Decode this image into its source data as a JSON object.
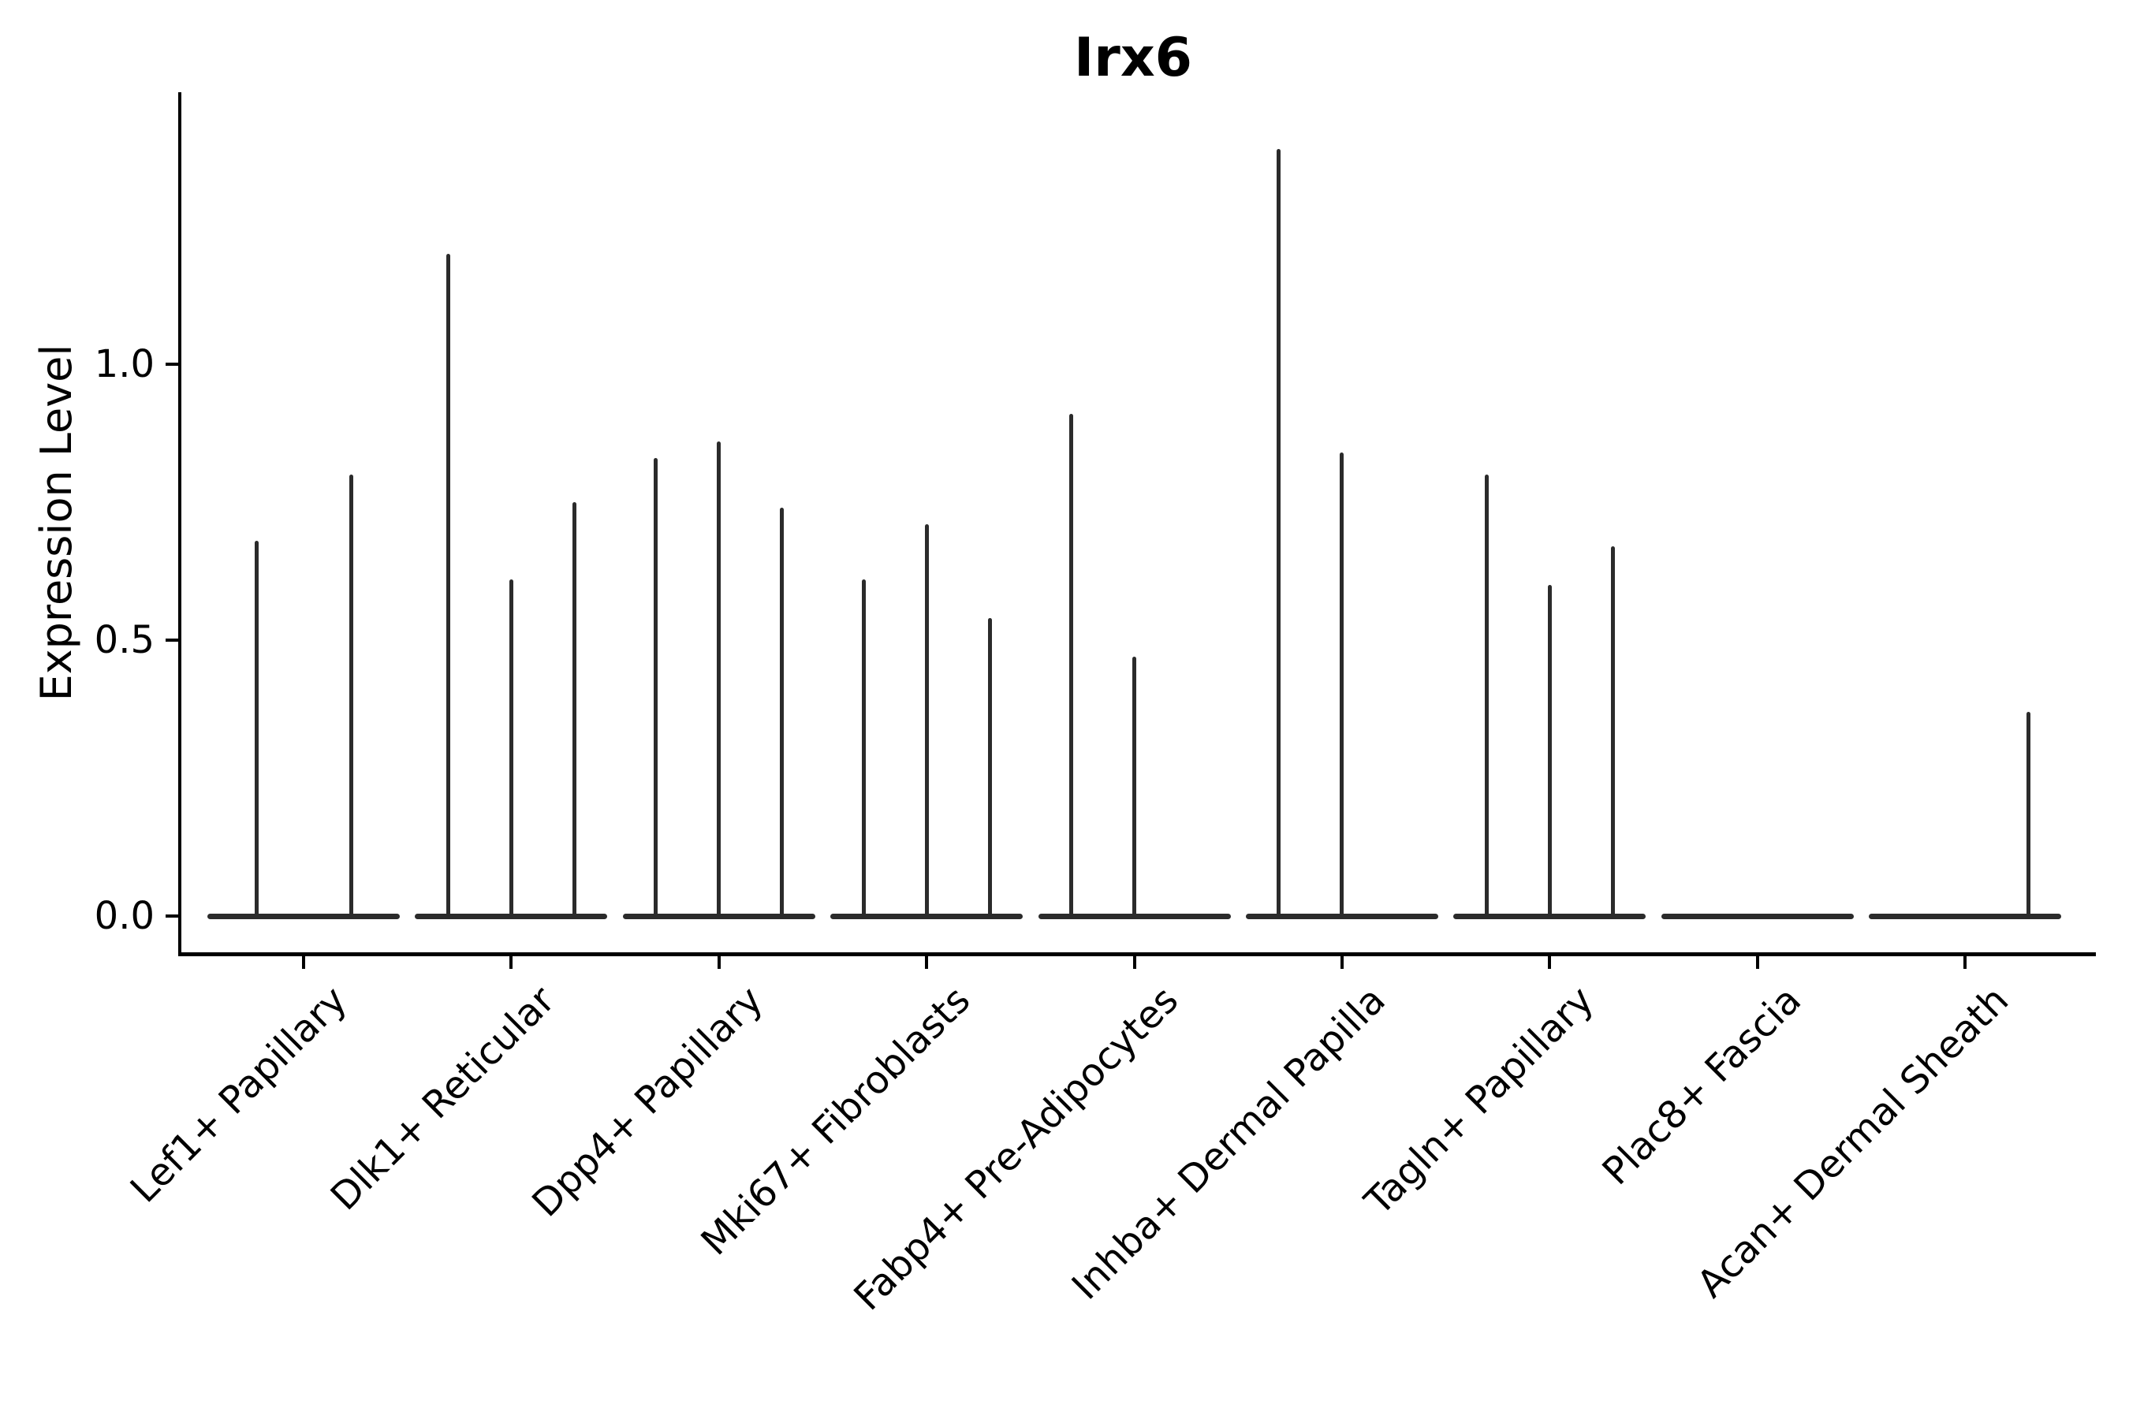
{
  "title": "Irx6",
  "y_axis": {
    "label": "Expression Level",
    "tick_labels": [
      "0.0",
      "0.5",
      "1.0"
    ]
  },
  "colors": {
    "ink": "#2b2b2b",
    "axis": "#000000"
  },
  "chart_data": {
    "type": "violin",
    "title": "Irx6",
    "xlabel": "",
    "ylabel": "Expression Level",
    "ylim": [
      -0.07,
      1.49
    ],
    "yticks": [
      0.0,
      0.5,
      1.0
    ],
    "ytick_labels": [
      "0.0",
      "0.5",
      "1.0"
    ],
    "grid": false,
    "legend": null,
    "categories": [
      "Lef1+ Papillary",
      "Dlk1+ Reticular",
      "Dpp4+ Papillary",
      "Mki67+ Fibroblasts",
      "Fabp4+ Pre-Adipocytes",
      "Inhba+ Dermal Papilla",
      "Tagln+ Papillary",
      "Plac8+ Fascia",
      "Acan+ Dermal Sheath"
    ],
    "groups": [
      {
        "category": "Lef1+ Papillary",
        "violin_peaks": [
          0.68,
          0.8
        ]
      },
      {
        "category": "Dlk1+ Reticular",
        "violin_peaks": [
          1.2,
          0.61,
          0.75
        ]
      },
      {
        "category": "Dpp4+ Papillary",
        "violin_peaks": [
          0.83,
          0.86,
          0.74
        ]
      },
      {
        "category": "Mki67+ Fibroblasts",
        "violin_peaks": [
          0.61,
          0.71,
          0.54
        ]
      },
      {
        "category": "Fabp4+ Pre-Adipocytes",
        "violin_peaks": [
          0.91,
          0.47,
          0.0
        ]
      },
      {
        "category": "Inhba+ Dermal Papilla",
        "violin_peaks": [
          1.39,
          0.84,
          0.0
        ]
      },
      {
        "category": "Tagln+ Papillary",
        "violin_peaks": [
          0.8,
          0.6,
          0.67
        ]
      },
      {
        "category": "Plac8+ Fascia",
        "violin_peaks": [
          0.0,
          0.0,
          0.0
        ]
      },
      {
        "category": "Acan+ Dermal Sheath",
        "violin_peaks": [
          0.0,
          0.0,
          0.37
        ]
      }
    ]
  }
}
